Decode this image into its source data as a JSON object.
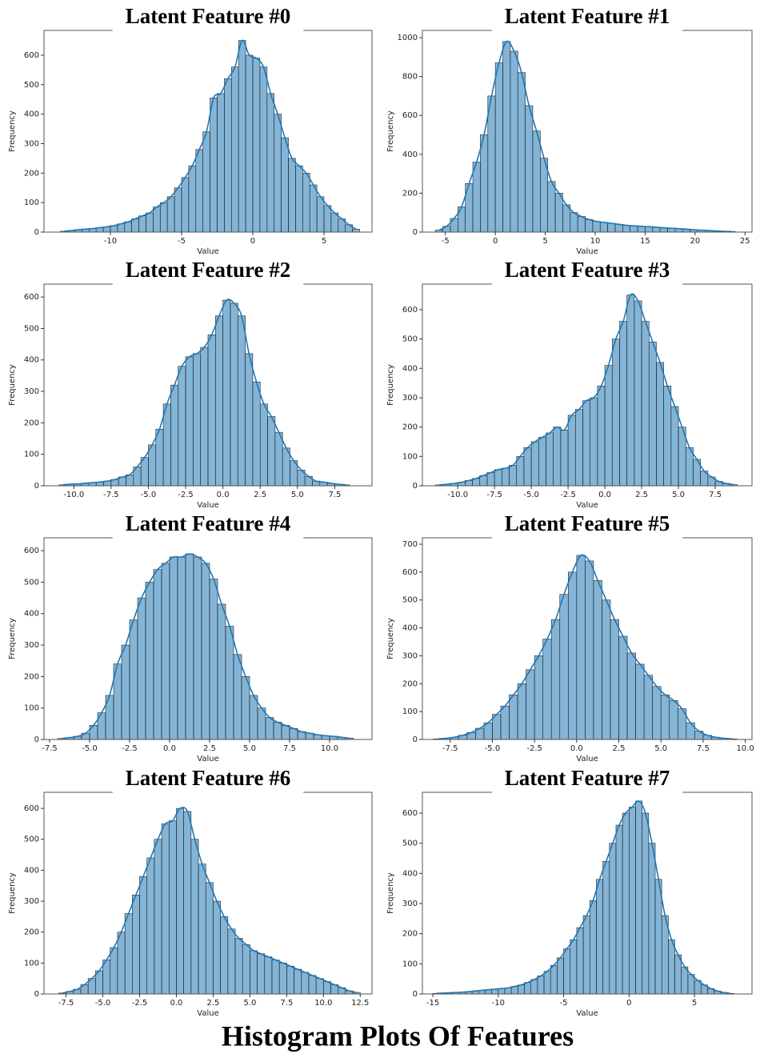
{
  "caption": "Histogram Plots Of Features",
  "chart_data": [
    {
      "type": "histogram",
      "title": "Latent Feature #0",
      "xlabel": "Value",
      "ylabel": "Frequency",
      "color": "#1f77b4",
      "bins": [
        -13.5,
        -13,
        -12.5,
        -12,
        -11.5,
        -11,
        -10.5,
        -10,
        -9.5,
        -9,
        -8.5,
        -8,
        -7.5,
        -7,
        -6.5,
        -6,
        -5.5,
        -5,
        -4.5,
        -4,
        -3.5,
        -3,
        -2.5,
        -2,
        -1.5,
        -1,
        -0.5,
        0,
        0.5,
        1,
        1.5,
        2,
        2.5,
        3,
        3.5,
        4,
        4.5,
        5,
        5.5,
        6,
        6.5,
        7,
        7.5
      ],
      "values": [
        3,
        5,
        8,
        10,
        12,
        15,
        18,
        22,
        28,
        35,
        45,
        55,
        65,
        85,
        100,
        120,
        150,
        185,
        225,
        280,
        340,
        455,
        470,
        520,
        560,
        650,
        600,
        590,
        560,
        470,
        400,
        320,
        250,
        225,
        200,
        160,
        120,
        90,
        65,
        45,
        25,
        10
      ],
      "xlim": [
        -14.66,
        8.37
      ],
      "ylim": [
        0,
        684
      ],
      "xticks": [
        -10,
        -5,
        0,
        5
      ],
      "yticks": [
        0,
        100,
        200,
        300,
        400,
        500,
        600
      ]
    },
    {
      "type": "histogram",
      "title": "Latent Feature #1",
      "xlabel": "Value",
      "ylabel": "Frequency",
      "color": "#1f77b4",
      "bins": [
        -6,
        -5.25,
        -4.5,
        -3.75,
        -3,
        -2.25,
        -1.5,
        -0.75,
        0,
        0.75,
        1.5,
        2.25,
        3,
        3.75,
        4.5,
        5.25,
        6,
        6.75,
        7.5,
        8.25,
        9,
        9.75,
        10.5,
        11.25,
        12,
        12.75,
        13.5,
        14.25,
        15,
        15.75,
        16.5,
        17.25,
        18,
        18.75,
        19.5,
        20.25,
        21,
        21.75,
        22.5,
        23.25,
        24
      ],
      "values": [
        10,
        30,
        70,
        130,
        250,
        360,
        500,
        700,
        870,
        980,
        930,
        820,
        650,
        520,
        380,
        260,
        200,
        140,
        100,
        80,
        65,
        55,
        50,
        45,
        40,
        35,
        32,
        30,
        28,
        25,
        22,
        20,
        18,
        15,
        12,
        10,
        8,
        6,
        4,
        3
      ],
      "xlim": [
        -7.3,
        25.7
      ],
      "ylim": [
        0,
        1037
      ],
      "xticks": [
        -5,
        0,
        5,
        10,
        15,
        20,
        25
      ],
      "yticks": [
        0,
        200,
        400,
        600,
        800,
        1000
      ]
    },
    {
      "type": "histogram",
      "title": "Latent Feature #2",
      "xlabel": "Value",
      "ylabel": "Frequency",
      "color": "#1f77b4",
      "bins": [
        -11,
        -10.5,
        -10,
        -9.5,
        -9,
        -8.5,
        -8,
        -7.5,
        -7,
        -6.5,
        -6,
        -5.5,
        -5,
        -4.5,
        -4,
        -3.5,
        -3,
        -2.5,
        -2,
        -1.5,
        -1,
        -0.5,
        0,
        0.5,
        1,
        1.5,
        2,
        2.5,
        3,
        3.5,
        4,
        4.5,
        5,
        5.5,
        6,
        6.5,
        7,
        7.5,
        8,
        8.5
      ],
      "values": [
        3,
        5,
        6,
        8,
        10,
        12,
        15,
        20,
        28,
        35,
        60,
        90,
        130,
        180,
        260,
        320,
        380,
        410,
        420,
        440,
        480,
        540,
        590,
        580,
        540,
        420,
        330,
        260,
        220,
        170,
        120,
        80,
        50,
        30,
        15,
        12,
        8,
        5,
        3
      ],
      "xlim": [
        -12.0,
        10.0
      ],
      "ylim": [
        0,
        641
      ],
      "xticks": [
        {
          "value": -10,
          "label": "-10.0"
        },
        -7.5,
        {
          "value": -5,
          "label": "-5.0"
        },
        -2.5,
        {
          "value": 0,
          "label": "0.0"
        },
        2.5,
        {
          "value": 5,
          "label": "5.0"
        },
        7.5
      ],
      "yticks": [
        0,
        100,
        200,
        300,
        400,
        500,
        600
      ]
    },
    {
      "type": "histogram",
      "title": "Latent Feature #3",
      "xlabel": "Value",
      "ylabel": "Frequency",
      "color": "#1f77b4",
      "bins": [
        -11.5,
        -11,
        -10.5,
        -10,
        -9.5,
        -9,
        -8.5,
        -8,
        -7.5,
        -7,
        -6.5,
        -6,
        -5.5,
        -5,
        -4.5,
        -4,
        -3.5,
        -3,
        -2.5,
        -2,
        -1.5,
        -1,
        -0.5,
        0,
        0.5,
        1,
        1.5,
        2,
        2.5,
        3,
        3.5,
        4,
        4.5,
        5,
        5.5,
        6,
        6.5,
        7,
        7.5,
        8,
        8.5,
        9
      ],
      "values": [
        3,
        5,
        8,
        12,
        18,
        25,
        35,
        45,
        55,
        60,
        70,
        100,
        130,
        150,
        165,
        180,
        200,
        190,
        240,
        260,
        290,
        300,
        340,
        410,
        500,
        560,
        650,
        630,
        560,
        490,
        420,
        340,
        270,
        200,
        130,
        90,
        50,
        30,
        15,
        8,
        4
      ],
      "xlim": [
        -12.4,
        10.0
      ],
      "ylim": [
        0,
        687
      ],
      "xticks": [
        {
          "value": -10,
          "label": "-10.0"
        },
        -7.5,
        {
          "value": -5,
          "label": "-5.0"
        },
        -2.5,
        {
          "value": 0,
          "label": "0.0"
        },
        2.5,
        {
          "value": 5,
          "label": "5.0"
        },
        7.5
      ],
      "yticks": [
        0,
        100,
        200,
        300,
        400,
        500,
        600
      ]
    },
    {
      "type": "histogram",
      "title": "Latent Feature #4",
      "xlabel": "Value",
      "ylabel": "Frequency",
      "color": "#1f77b4",
      "bins": [
        -7,
        -6.5,
        -6,
        -5.5,
        -5,
        -4.5,
        -4,
        -3.5,
        -3,
        -2.5,
        -2,
        -1.5,
        -1,
        -0.5,
        0,
        0.5,
        1,
        1.5,
        2,
        2.5,
        3,
        3.5,
        4,
        4.5,
        5,
        5.5,
        6,
        6.5,
        7,
        7.5,
        8,
        8.5,
        9,
        9.5,
        10,
        10.5,
        11,
        11.5
      ],
      "values": [
        3,
        6,
        10,
        20,
        45,
        85,
        140,
        240,
        300,
        380,
        450,
        500,
        540,
        560,
        580,
        580,
        590,
        580,
        560,
        510,
        430,
        360,
        270,
        200,
        140,
        100,
        70,
        55,
        45,
        35,
        25,
        20,
        15,
        12,
        10,
        7,
        4
      ],
      "xlim": [
        -7.85,
        12.65
      ],
      "ylim": [
        0,
        641
      ],
      "xticks": [
        -7.5,
        {
          "value": -5,
          "label": "-5.0"
        },
        -2.5,
        {
          "value": 0,
          "label": "0.0"
        },
        2.5,
        {
          "value": 5,
          "label": "5.0"
        },
        7.5,
        {
          "value": 10,
          "label": "10.0"
        }
      ],
      "yticks": [
        0,
        100,
        200,
        300,
        400,
        500,
        600
      ]
    },
    {
      "type": "histogram",
      "title": "Latent Feature #5",
      "xlabel": "Value",
      "ylabel": "Frequency",
      "color": "#1f77b4",
      "bins": [
        -8.5,
        -8,
        -7.5,
        -7,
        -6.5,
        -6,
        -5.5,
        -5,
        -4.5,
        -4,
        -3.5,
        -3,
        -2.5,
        -2,
        -1.5,
        -1,
        -0.5,
        0,
        0.5,
        1,
        1.5,
        2,
        2.5,
        3,
        3.5,
        4,
        4.5,
        5,
        5.5,
        6,
        6.5,
        7,
        7.5,
        8,
        8.5,
        9,
        9.5
      ],
      "values": [
        2,
        4,
        8,
        15,
        25,
        40,
        60,
        90,
        120,
        160,
        200,
        250,
        300,
        360,
        430,
        520,
        600,
        660,
        640,
        570,
        500,
        430,
        370,
        310,
        270,
        230,
        190,
        160,
        140,
        110,
        60,
        30,
        15,
        8,
        4,
        2
      ],
      "xlim": [
        -9.15,
        10.4
      ],
      "ylim": [
        0,
        723
      ],
      "xticks": [
        -7.5,
        {
          "value": -5,
          "label": "-5.0"
        },
        -2.5,
        {
          "value": 0,
          "label": "0.0"
        },
        2.5,
        {
          "value": 5,
          "label": "5.0"
        },
        7.5,
        {
          "value": 10,
          "label": "10.0"
        }
      ],
      "yticks": [
        0,
        100,
        200,
        300,
        400,
        500,
        600,
        700
      ]
    },
    {
      "type": "histogram",
      "title": "Latent Feature #6",
      "xlabel": "Value",
      "ylabel": "Frequency",
      "color": "#1f77b4",
      "bins": [
        -8,
        -7.5,
        -7,
        -6.5,
        -6,
        -5.5,
        -5,
        -4.5,
        -4,
        -3.5,
        -3,
        -2.5,
        -2,
        -1.5,
        -1,
        -0.5,
        0,
        0.5,
        1,
        1.5,
        2,
        2.5,
        3,
        3.5,
        4,
        4.5,
        5,
        5.5,
        6,
        6.5,
        7,
        7.5,
        8,
        8.5,
        9,
        9.5,
        10,
        10.5,
        11,
        11.5,
        12,
        12.5
      ],
      "values": [
        3,
        8,
        15,
        30,
        50,
        75,
        110,
        150,
        200,
        260,
        320,
        380,
        440,
        500,
        550,
        560,
        600,
        590,
        500,
        420,
        360,
        300,
        250,
        210,
        180,
        160,
        140,
        130,
        120,
        110,
        100,
        90,
        80,
        70,
        60,
        50,
        40,
        30,
        20,
        10,
        5
      ],
      "xlim": [
        -9.0,
        13.3
      ],
      "ylim": [
        0,
        652
      ],
      "xticks": [
        -7.5,
        {
          "value": -5,
          "label": "-5.0"
        },
        -2.5,
        {
          "value": 0,
          "label": "0.0"
        },
        2.5,
        {
          "value": 5,
          "label": "5.0"
        },
        7.5,
        {
          "value": 10,
          "label": "10.0"
        },
        12.5
      ],
      "yticks": [
        0,
        100,
        200,
        300,
        400,
        500,
        600
      ]
    },
    {
      "type": "histogram",
      "title": "Latent Feature #7",
      "xlabel": "Value",
      "ylabel": "Frequency",
      "color": "#1f77b4",
      "bins": [
        -15,
        -14.5,
        -14,
        -13.5,
        -13,
        -12.5,
        -12,
        -11.5,
        -11,
        -10.5,
        -10,
        -9.5,
        -9,
        -8.5,
        -8,
        -7.5,
        -7,
        -6.5,
        -6,
        -5.5,
        -5,
        -4.5,
        -4,
        -3.5,
        -3,
        -2.5,
        -2,
        -1.5,
        -1,
        -0.5,
        0,
        0.5,
        1,
        1.5,
        2,
        2.5,
        3,
        3.5,
        4,
        4.5,
        5,
        5.5,
        6,
        6.5,
        7,
        7.5,
        8
      ],
      "values": [
        2,
        3,
        4,
        5,
        6,
        8,
        10,
        12,
        14,
        16,
        18,
        20,
        25,
        30,
        38,
        48,
        60,
        75,
        95,
        120,
        150,
        180,
        220,
        260,
        310,
        380,
        440,
        500,
        560,
        600,
        620,
        640,
        600,
        500,
        380,
        260,
        180,
        130,
        90,
        65,
        45,
        30,
        18,
        10,
        5,
        2
      ],
      "xlim": [
        -15.8,
        9.4
      ],
      "ylim": [
        0,
        669
      ],
      "xticks": [
        -15,
        -10,
        -5,
        0,
        5
      ],
      "yticks": [
        0,
        100,
        200,
        300,
        400,
        500,
        600
      ]
    }
  ]
}
